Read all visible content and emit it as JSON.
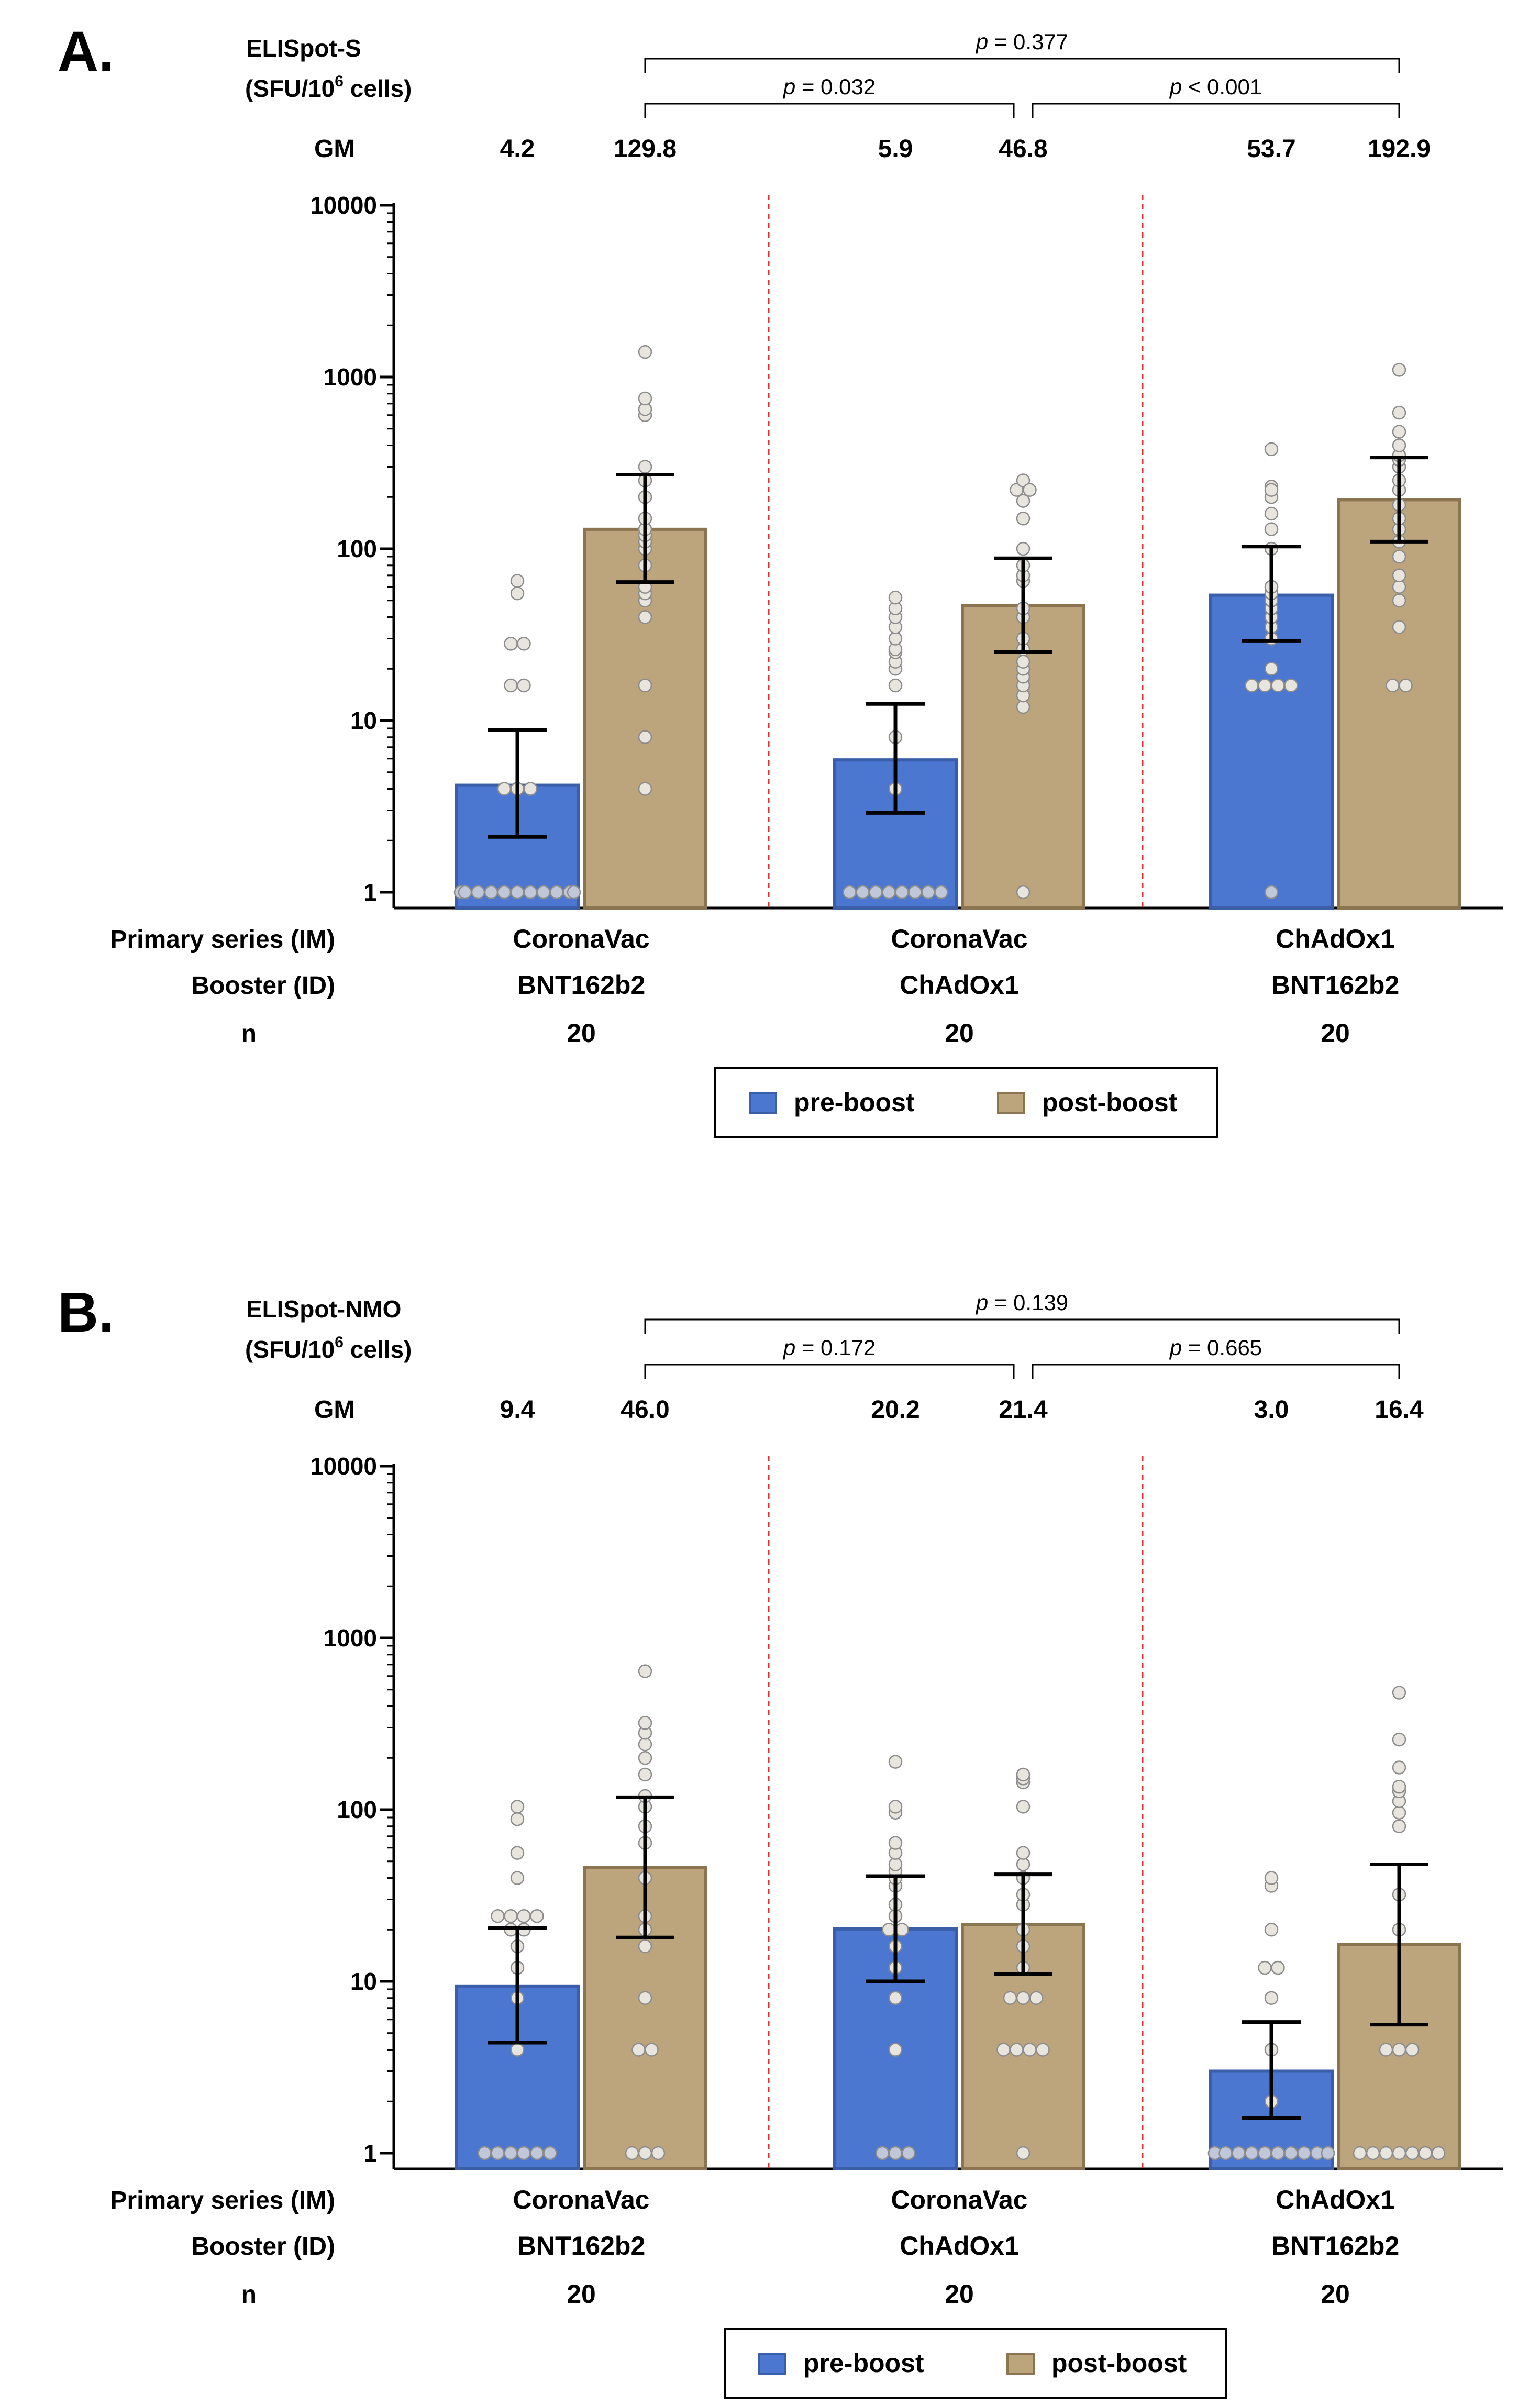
{
  "colors": {
    "pre_boost": "#4b77d1",
    "pre_boost_edge": "#3a5fa8",
    "post_boost": "#bca47c",
    "post_boost_edge": "#8a7550",
    "dot_fill": "#e8e4de",
    "dot_edge": "#8c8c8c",
    "dot_baseline_fill": "#bfc7d8",
    "divider": "#e03030",
    "axis": "#000000"
  },
  "chart_data": [
    {
      "type": "bar",
      "panel": "A.",
      "ylabel_line1": "ELISpot-S",
      "ylabel_line2_prefix": "(SFU/10",
      "ylabel_line2_sup": "6",
      "ylabel_line2_suffix": " cells)",
      "yscale": "log",
      "ylim": [
        1,
        10000
      ],
      "yticks": [
        "10000",
        "1000",
        "100",
        "10",
        "1"
      ],
      "gm_label": "GM",
      "row_labels": {
        "primary": "Primary series (IM)",
        "booster": "Booster (ID)",
        "n": "n"
      },
      "groups": [
        {
          "primary": "CoronaVac",
          "booster": "BNT162b2",
          "n": "20",
          "pre": {
            "gm": 4.2,
            "gm_label": "4.2",
            "ci": [
              2.1,
              8.8
            ]
          },
          "post": {
            "gm": 129.8,
            "gm_label": "129.8",
            "ci": [
              64,
              270
            ]
          }
        },
        {
          "primary": "CoronaVac",
          "booster": "ChAdOx1",
          "n": "20",
          "pre": {
            "gm": 5.9,
            "gm_label": "5.9",
            "ci": [
              2.9,
              12.5
            ]
          },
          "post": {
            "gm": 46.8,
            "gm_label": "46.8",
            "ci": [
              25,
              88
            ]
          }
        },
        {
          "primary": "ChAdOx1",
          "booster": "BNT162b2",
          "n": "20",
          "pre": {
            "gm": 53.7,
            "gm_label": "53.7",
            "ci": [
              29,
              103
            ]
          },
          "post": {
            "gm": 192.9,
            "gm_label": "192.9",
            "ci": [
              110,
              340
            ]
          }
        }
      ],
      "comparisons": [
        {
          "label": "p",
          "text": " = 0.377",
          "from_group": 0,
          "to_group": 2,
          "level": 2
        },
        {
          "label": "p",
          "text": " = 0.032",
          "from_group": 0,
          "to_group": 1,
          "level": 1
        },
        {
          "label": "p",
          "text": " < 0.001",
          "from_group": 1,
          "to_group": 2,
          "level": 1
        }
      ],
      "points": [
        [
          1,
          1,
          1,
          1,
          1,
          1,
          1,
          1,
          1,
          1,
          1,
          4,
          4,
          16,
          16,
          28,
          28,
          55,
          65,
          4
        ],
        [
          4,
          8,
          16,
          40,
          50,
          55,
          60,
          80,
          100,
          110,
          120,
          130,
          150,
          200,
          250,
          300,
          600,
          650,
          750,
          1400
        ],
        [
          1,
          1,
          1,
          1,
          1,
          1,
          1,
          1,
          4,
          8,
          16,
          20,
          22,
          25,
          26,
          30,
          35,
          40,
          45,
          52
        ],
        [
          1,
          12,
          14,
          16,
          18,
          20,
          22,
          26,
          30,
          40,
          45,
          65,
          70,
          80,
          100,
          150,
          190,
          220,
          250,
          220
        ],
        [
          1,
          16,
          16,
          16,
          16,
          20,
          30,
          35,
          40,
          45,
          50,
          55,
          60,
          100,
          130,
          160,
          200,
          230,
          220,
          380
        ],
        [
          16,
          16,
          35,
          50,
          60,
          70,
          90,
          110,
          130,
          150,
          180,
          220,
          250,
          300,
          330,
          350,
          400,
          480,
          620,
          1100
        ]
      ],
      "legend": {
        "pre": "pre-boost",
        "post": "post-boost"
      }
    },
    {
      "type": "bar",
      "panel": "B.",
      "ylabel_line1": "ELISpot-NMO",
      "ylabel_line2_prefix": "(SFU/10",
      "ylabel_line2_sup": "6",
      "ylabel_line2_suffix": " cells)",
      "yscale": "log",
      "ylim": [
        1,
        10000
      ],
      "yticks": [
        "10000",
        "1000",
        "100",
        "10",
        "1"
      ],
      "gm_label": "GM",
      "row_labels": {
        "primary": "Primary series (IM)",
        "booster": "Booster (ID)",
        "n": "n"
      },
      "groups": [
        {
          "primary": "CoronaVac",
          "booster": "BNT162b2",
          "n": "20",
          "pre": {
            "gm": 9.4,
            "gm_label": "9.4",
            "ci": [
              4.4,
              20.5
            ]
          },
          "post": {
            "gm": 46.0,
            "gm_label": "46.0",
            "ci": [
              18,
              118
            ]
          }
        },
        {
          "primary": "CoronaVac",
          "booster": "ChAdOx1",
          "n": "20",
          "pre": {
            "gm": 20.2,
            "gm_label": "20.2",
            "ci": [
              10,
              41
            ]
          },
          "post": {
            "gm": 21.4,
            "gm_label": "21.4",
            "ci": [
              11,
              42
            ]
          }
        },
        {
          "primary": "ChAdOx1",
          "booster": "BNT162b2",
          "n": "20",
          "pre": {
            "gm": 3.0,
            "gm_label": "3.0",
            "ci": [
              1.6,
              5.8
            ]
          },
          "post": {
            "gm": 16.4,
            "gm_label": "16.4",
            "ci": [
              5.6,
              48
            ]
          }
        }
      ],
      "comparisons": [
        {
          "label": "p",
          "text": " = 0.139",
          "from_group": 0,
          "to_group": 2,
          "level": 2
        },
        {
          "label": "p",
          "text": " = 0.172",
          "from_group": 0,
          "to_group": 1,
          "level": 1
        },
        {
          "label": "p",
          "text": " = 0.665",
          "from_group": 1,
          "to_group": 2,
          "level": 1
        }
      ],
      "points": [
        [
          1,
          1,
          1,
          1,
          1,
          1,
          4,
          8,
          12,
          16,
          20,
          20,
          24,
          24,
          24,
          24,
          40,
          56,
          88,
          104
        ],
        [
          1,
          1,
          1,
          4,
          4,
          8,
          16,
          20,
          24,
          40,
          64,
          80,
          104,
          120,
          160,
          200,
          240,
          280,
          320,
          640
        ],
        [
          1,
          1,
          1,
          4,
          8,
          12,
          16,
          20,
          20,
          24,
          28,
          36,
          40,
          44,
          48,
          56,
          64,
          96,
          104,
          190
        ],
        [
          1,
          4,
          4,
          4,
          4,
          8,
          8,
          8,
          12,
          16,
          20,
          28,
          32,
          40,
          48,
          56,
          104,
          144,
          152,
          160
        ],
        [
          1,
          1,
          1,
          1,
          1,
          1,
          1,
          1,
          1,
          1,
          1,
          1,
          2,
          4,
          8,
          12,
          12,
          20,
          36,
          40
        ],
        [
          1,
          1,
          1,
          1,
          1,
          1,
          1,
          4,
          4,
          4,
          20,
          32,
          80,
          96,
          112,
          128,
          136,
          176,
          256,
          480
        ]
      ],
      "legend": {
        "pre": "pre-boost",
        "post": "post-boost"
      }
    }
  ]
}
